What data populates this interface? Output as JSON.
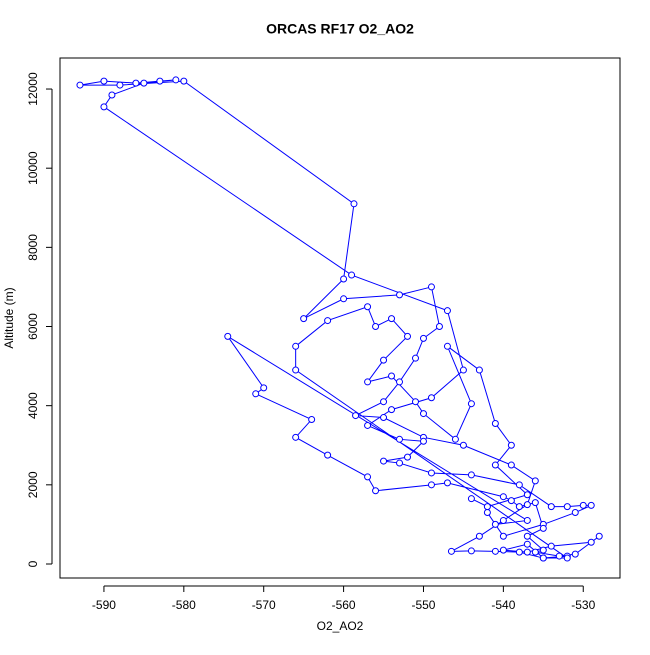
{
  "chart_data": {
    "type": "line",
    "title": "ORCAS RF17 O2_AO2",
    "x_label": "O2_AO2",
    "y_label": "Altitude (m)",
    "color": "#0000ff",
    "marker": "circle",
    "x": [
      -532,
      -535,
      -538,
      -541,
      -544,
      -546.5,
      -543,
      -540,
      -537,
      -536,
      -539,
      -545,
      -550,
      -555,
      -558.5,
      -555,
      -553,
      -551,
      -550,
      -548,
      -549,
      -553,
      -560,
      -565,
      -560,
      -558.7,
      -580,
      -588,
      -593,
      -590,
      -586,
      -583,
      -581,
      -585,
      -589,
      -590,
      -559,
      -547,
      -545,
      -549,
      -554,
      -557,
      -553,
      -550,
      -552,
      -555,
      -553,
      -549,
      -544,
      -538,
      -534,
      -532,
      -530,
      -529,
      -531,
      -535,
      -540,
      -542,
      -541,
      -537,
      -574.5,
      -570,
      -571,
      -564,
      -566,
      -562,
      -557,
      -556,
      -549,
      -547,
      -540,
      -539,
      -538,
      -536,
      -535,
      -537,
      -535,
      -536,
      -533,
      -531,
      -528,
      -529,
      -534,
      -537,
      -540,
      -537,
      -535,
      -532,
      -566,
      -566,
      -562,
      -557,
      -556,
      -554,
      -552,
      -555,
      -557,
      -554,
      -551,
      -550,
      -546,
      -544,
      -547,
      -543,
      -541,
      -539,
      -541,
      -537,
      -542,
      -544
    ],
    "values": [
      200,
      150,
      300,
      320,
      330,
      320,
      700,
      1100,
      1500,
      2100,
      2500,
      3000,
      3200,
      3700,
      3750,
      4100,
      4600,
      5200,
      5700,
      6000,
      7000,
      6800,
      6700,
      6200,
      7200,
      9100,
      12200,
      12100,
      12100,
      12200,
      12150,
      12200,
      12230,
      12150,
      11850,
      11550,
      7300,
      6400,
      4900,
      4200,
      3900,
      3500,
      3150,
      3100,
      2700,
      2600,
      2550,
      2300,
      2250,
      2000,
      1450,
      1450,
      1480,
      1480,
      1300,
      1000,
      700,
      1300,
      1000,
      1100,
      5750,
      4450,
      4300,
      3650,
      3200,
      2750,
      2200,
      1850,
      2000,
      2050,
      1700,
      1600,
      1450,
      1550,
      900,
      700,
      350,
      300,
      200,
      250,
      700,
      550,
      450,
      300,
      350,
      500,
      150,
      150,
      4900,
      5500,
      6150,
      6500,
      6000,
      6200,
      5750,
      5150,
      4600,
      4750,
      4100,
      3800,
      3150,
      4050,
      5500,
      4900,
      3550,
      3000,
      2500,
      1750,
      1450,
      1650
    ],
    "xlim": [
      -595.5,
      -525.4
    ],
    "ylim": [
      -354,
      12784
    ],
    "xticks": [
      -590,
      -580,
      -570,
      -560,
      -550,
      -540,
      -530
    ],
    "yticks": [
      0,
      2000,
      4000,
      6000,
      8000,
      10000,
      12000
    ]
  }
}
